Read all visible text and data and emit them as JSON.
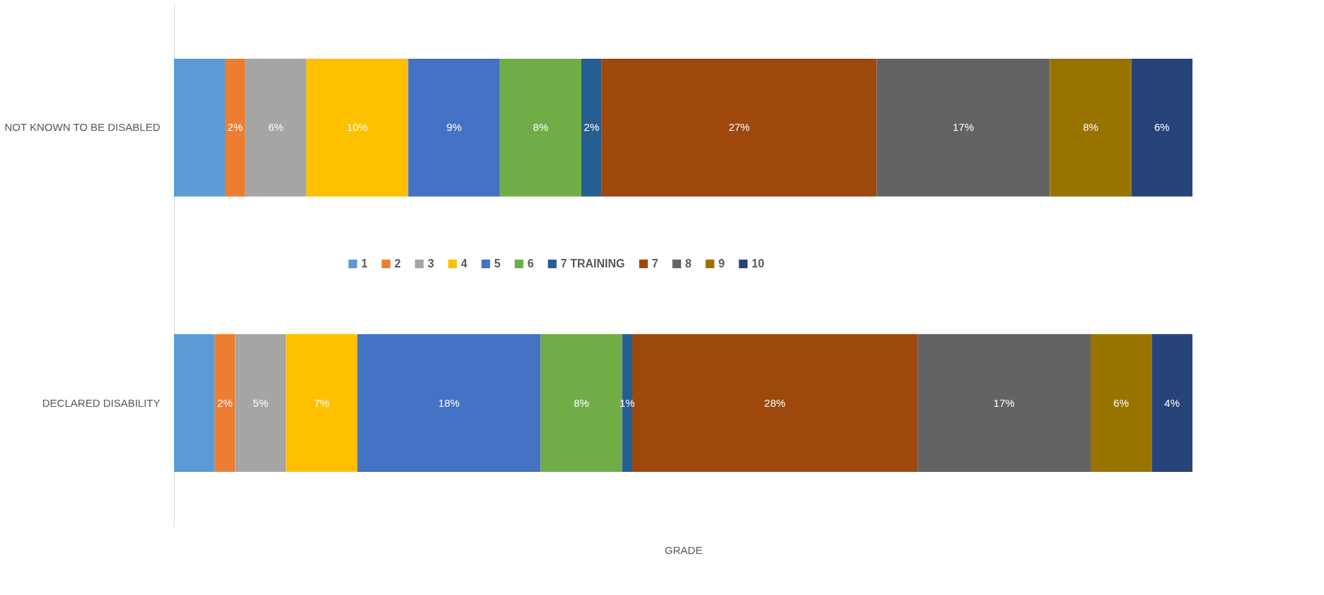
{
  "chart_data": {
    "type": "bar",
    "orientation": "horizontal",
    "stacked": true,
    "xlabel": "GRADE",
    "categories": [
      "NOT KNOWN TO BE DISABLED",
      "DECLARED DISABILITY"
    ],
    "xlim": [
      0,
      100
    ],
    "tick_labels": "y",
    "grid": false,
    "legend": "center",
    "series": [
      {
        "name": "1",
        "color": "#5b9bd5",
        "values": [
          5,
          4
        ],
        "value_labels": [
          null,
          null
        ]
      },
      {
        "name": "2",
        "color": "#ed7d31",
        "values": [
          2,
          2
        ],
        "value_labels": [
          "2%",
          "2%"
        ]
      },
      {
        "name": "3",
        "color": "#a5a5a5",
        "values": [
          6,
          5
        ],
        "value_labels": [
          "6%",
          "5%"
        ]
      },
      {
        "name": "4",
        "color": "#ffc000",
        "values": [
          10,
          7
        ],
        "value_labels": [
          "10%",
          "7%"
        ]
      },
      {
        "name": "5",
        "color": "#4472c4",
        "values": [
          9,
          18
        ],
        "value_labels": [
          "9%",
          "18%"
        ]
      },
      {
        "name": "6",
        "color": "#70ad47",
        "values": [
          8,
          8
        ],
        "value_labels": [
          "8%",
          "8%"
        ]
      },
      {
        "name": "7 TRAINING",
        "color": "#255e91",
        "values": [
          2,
          1
        ],
        "value_labels": [
          "2%",
          "1%"
        ]
      },
      {
        "name": "7",
        "color": "#9e480e",
        "values": [
          27,
          28
        ],
        "value_labels": [
          "27%",
          "28%"
        ]
      },
      {
        "name": "8",
        "color": "#636363",
        "values": [
          17,
          17
        ],
        "value_labels": [
          "17%",
          "17%"
        ]
      },
      {
        "name": "9",
        "color": "#997300",
        "values": [
          8,
          6
        ],
        "value_labels": [
          "8%",
          "6%"
        ]
      },
      {
        "name": "10",
        "color": "#264478",
        "values": [
          6,
          4
        ],
        "value_labels": [
          "6%",
          "4%"
        ]
      }
    ]
  }
}
